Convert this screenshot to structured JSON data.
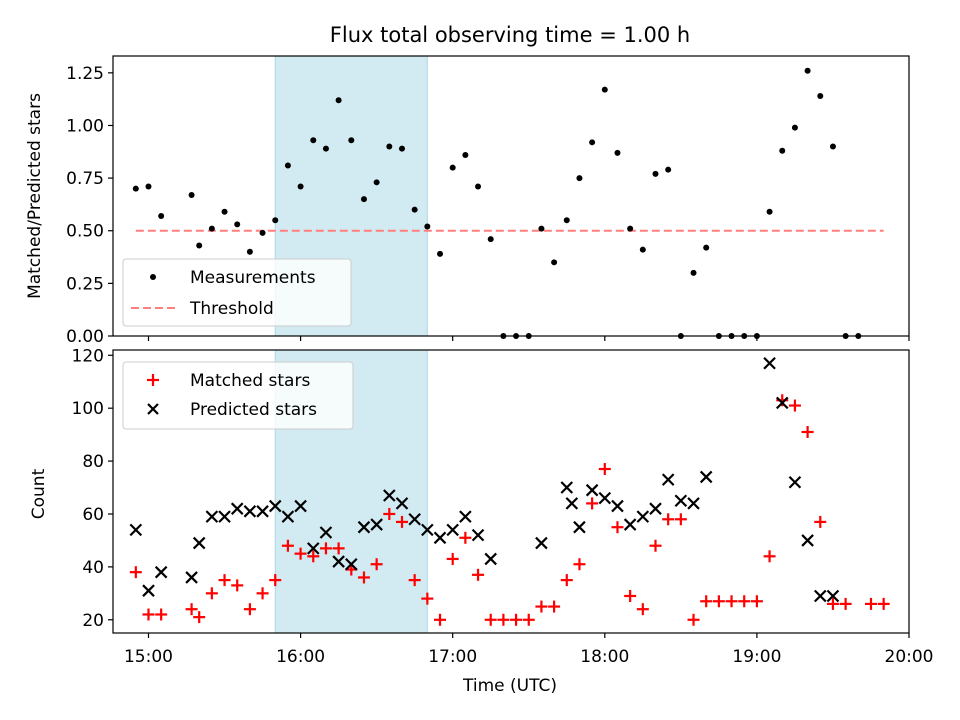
{
  "chart_data": [
    {
      "type": "scatter",
      "title": "Flux total observing time = 1.00 h",
      "xlabel": "",
      "ylabel": "Matched/Predicted stars",
      "xlim": [
        "14:46",
        "20:00"
      ],
      "ylim": [
        0,
        1.33
      ],
      "yticks": [
        0.0,
        0.25,
        0.5,
        0.75,
        1.0,
        1.25
      ],
      "ytick_labels": [
        "0.00",
        "0.25",
        "0.50",
        "0.75",
        "1.00",
        "1.25"
      ],
      "shaded_span": [
        "15:50",
        "16:50"
      ],
      "legend": {
        "placement": "lower-left"
      },
      "series": [
        {
          "name": "Measurements",
          "marker": "dot",
          "color": "#000000",
          "x": [
            "14:55",
            "15:00",
            "15:05",
            "15:17",
            "15:20",
            "15:25",
            "15:30",
            "15:35",
            "15:40",
            "15:45",
            "15:50",
            "15:55",
            "16:00",
            "16:05",
            "16:10",
            "16:15",
            "16:20",
            "16:25",
            "16:30",
            "16:35",
            "16:40",
            "16:45",
            "16:50",
            "16:55",
            "17:00",
            "17:05",
            "17:10",
            "17:15",
            "17:20",
            "17:25",
            "17:30",
            "17:35",
            "17:40",
            "17:45",
            "17:50",
            "17:55",
            "18:00",
            "18:05",
            "18:10",
            "18:15",
            "18:20",
            "18:25",
            "18:30",
            "18:35",
            "18:40",
            "18:45",
            "18:50",
            "18:55",
            "19:00",
            "19:05",
            "19:10",
            "19:15",
            "19:20",
            "19:25",
            "19:30",
            "19:35",
            "19:40"
          ],
          "y": [
            0.7,
            0.71,
            0.57,
            0.67,
            0.43,
            0.51,
            0.59,
            0.53,
            0.4,
            0.49,
            0.55,
            0.81,
            0.71,
            0.93,
            0.89,
            1.12,
            0.93,
            0.65,
            0.73,
            0.9,
            0.89,
            0.6,
            0.52,
            0.39,
            0.8,
            0.86,
            0.71,
            0.46,
            0,
            0,
            0,
            0.51,
            0.35,
            0.55,
            0.75,
            0.92,
            1.17,
            0.87,
            0.51,
            0.41,
            0.77,
            0.79,
            0,
            0.3,
            0.42,
            0,
            0,
            0,
            0,
            0.59,
            0.88,
            0.99,
            1.26,
            1.14,
            0.9,
            0,
            0
          ]
        },
        {
          "name": "Threshold",
          "style": "dashed",
          "color": "#ff7f7f",
          "x": [
            "14:55",
            "19:50"
          ],
          "y": [
            0.5,
            0.5
          ]
        }
      ]
    },
    {
      "type": "scatter",
      "title": "",
      "xlabel": "Time (UTC)",
      "ylabel": "Count",
      "xlim": [
        "14:46",
        "20:00"
      ],
      "xticks": [
        "15:00",
        "16:00",
        "17:00",
        "18:00",
        "19:00",
        "20:00"
      ],
      "ylim": [
        15,
        122
      ],
      "yticks": [
        20,
        40,
        60,
        80,
        100,
        120
      ],
      "shaded_span": [
        "15:50",
        "16:50"
      ],
      "legend": {
        "placement": "top-left"
      },
      "series": [
        {
          "name": "Matched stars",
          "marker": "plus",
          "color": "#ff0000",
          "x": [
            "14:55",
            "15:00",
            "15:05",
            "15:17",
            "15:20",
            "15:25",
            "15:30",
            "15:35",
            "15:40",
            "15:45",
            "15:50",
            "15:55",
            "16:00",
            "16:05",
            "16:10",
            "16:15",
            "16:20",
            "16:25",
            "16:30",
            "16:35",
            "16:40",
            "16:45",
            "16:50",
            "16:55",
            "17:00",
            "17:05",
            "17:10",
            "17:15",
            "17:20",
            "17:25",
            "17:30",
            "17:35",
            "17:40",
            "17:45",
            "17:50",
            "17:55",
            "18:00",
            "18:05",
            "18:10",
            "18:15",
            "18:20",
            "18:25",
            "18:30",
            "18:35",
            "18:40",
            "18:45",
            "18:50",
            "18:55",
            "19:00",
            "19:05",
            "19:10",
            "19:15",
            "19:20",
            "19:25",
            "19:30",
            "19:35",
            "19:45",
            "19:50"
          ],
          "y": [
            38,
            22,
            22,
            24,
            21,
            30,
            35,
            33,
            24,
            30,
            35,
            48,
            45,
            44,
            47,
            47,
            39,
            36,
            41,
            60,
            57,
            35,
            28,
            20,
            43,
            51,
            37,
            20,
            20,
            20,
            20,
            25,
            25,
            35,
            41,
            64,
            77,
            55,
            29,
            24,
            48,
            58,
            58,
            20,
            27,
            27,
            27,
            27,
            27,
            44,
            103,
            101,
            91,
            57,
            26,
            26,
            26,
            26
          ]
        },
        {
          "name": "Predicted stars",
          "marker": "x",
          "color": "#000000",
          "x": [
            "14:55",
            "15:00",
            "15:05",
            "15:17",
            "15:20",
            "15:25",
            "15:30",
            "15:35",
            "15:40",
            "15:45",
            "15:50",
            "15:55",
            "16:00",
            "16:05",
            "16:10",
            "16:15",
            "16:20",
            "16:25",
            "16:30",
            "16:35",
            "16:40",
            "16:45",
            "16:50",
            "16:55",
            "17:00",
            "17:05",
            "17:10",
            "17:15",
            "17:35",
            "17:45",
            "17:47",
            "17:50",
            "17:55",
            "18:00",
            "18:05",
            "18:10",
            "18:15",
            "18:20",
            "18:25",
            "18:30",
            "18:35",
            "18:40",
            "19:05",
            "19:10",
            "19:15",
            "19:20",
            "19:25",
            "19:30"
          ],
          "y": [
            54,
            31,
            38,
            36,
            49,
            59,
            59,
            62,
            61,
            61,
            63,
            59,
            63,
            47,
            53,
            42,
            41,
            55,
            56,
            67,
            64,
            58,
            54,
            51,
            54,
            59,
            52,
            43,
            49,
            70,
            64,
            55,
            69,
            66,
            63,
            56,
            59,
            62,
            73,
            65,
            64,
            74,
            117,
            102,
            72,
            50,
            29,
            29
          ]
        }
      ]
    }
  ]
}
